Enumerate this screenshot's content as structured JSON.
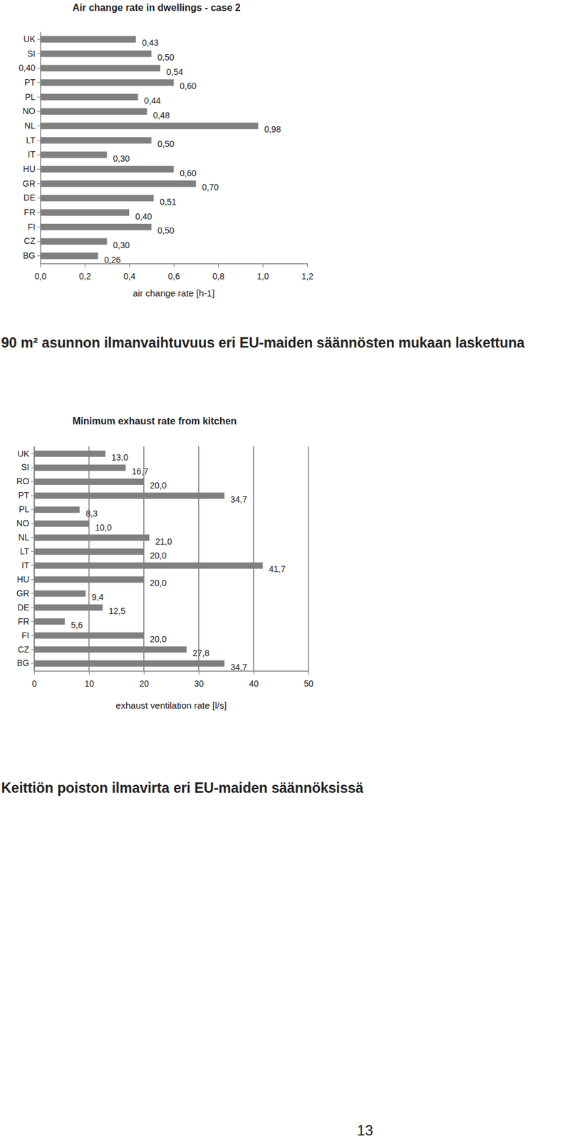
{
  "chart_data": [
    {
      "type": "bar",
      "orientation": "horizontal",
      "title": "Air change rate in dwellings - case 2",
      "xlabel": "air change rate [h-1]",
      "categories": [
        "UK",
        "SI",
        "0,40",
        "PT",
        "PL",
        "NO",
        "NL",
        "LT",
        "IT",
        "HU",
        "GR",
        "DE",
        "FR",
        "FI",
        "CZ",
        "BG"
      ],
      "values": [
        0.43,
        0.5,
        0.54,
        0.6,
        0.44,
        0.48,
        0.98,
        0.5,
        0.3,
        0.6,
        0.7,
        0.51,
        0.4,
        0.5,
        0.3,
        0.26
      ],
      "value_labels": [
        "0,43",
        "0,50",
        "0,54",
        "0,60",
        "0,44",
        "0,48",
        "0,98",
        "0,50",
        "0,30",
        "0,60",
        "0,70",
        "0,51",
        "0,40",
        "0,50",
        "0,30",
        "0,26"
      ],
      "color": "#808080",
      "xlim": [
        0,
        1.2
      ],
      "xticks": [
        {
          "value": 0,
          "label": "0,0"
        },
        {
          "value": 0.2,
          "label": "0,2"
        },
        {
          "value": 0.4,
          "label": "0,4"
        },
        {
          "value": 0.6,
          "label": "0,6"
        },
        {
          "value": 0.8,
          "label": "0,8"
        },
        {
          "value": 1.0,
          "label": "1,0"
        },
        {
          "value": 1.2,
          "label": "1,2"
        }
      ],
      "grid": false,
      "data_labels": true
    },
    {
      "type": "bar",
      "orientation": "horizontal",
      "title": "Minimum exhaust rate from kitchen",
      "xlabel": "exhaust ventilation rate [l/s]",
      "categories": [
        "UK",
        "SI",
        "RO",
        "PT",
        "PL",
        "NO",
        "NL",
        "LT",
        "IT",
        "HU",
        "GR",
        "DE",
        "FR",
        "FI",
        "CZ",
        "BG"
      ],
      "values": [
        13.0,
        16.7,
        20.0,
        34.7,
        8.3,
        10.0,
        21.0,
        20.0,
        41.7,
        20.0,
        9.4,
        12.5,
        5.6,
        20.0,
        27.8,
        34.7
      ],
      "value_labels": [
        "13,0",
        "16,7",
        "20,0",
        "34,7",
        "8,3",
        "10,0",
        "21,0",
        "20,0",
        "41,7",
        "20,0",
        "9,4",
        "12,5",
        "5,6",
        "20,0",
        "27,8",
        "34,7"
      ],
      "color": "#808080",
      "xlim": [
        0,
        50
      ],
      "xticks": [
        0,
        10,
        20,
        30,
        40,
        50
      ],
      "grid": true,
      "data_labels": true
    }
  ],
  "page": {
    "captions": [
      "90 m² asunnon ilmanvaihtuvuus eri EU-maiden säännösten mukaan laskettuna",
      "Keittiön poiston ilmavirta eri EU-maiden säännöksissä"
    ],
    "page_number": "13"
  }
}
